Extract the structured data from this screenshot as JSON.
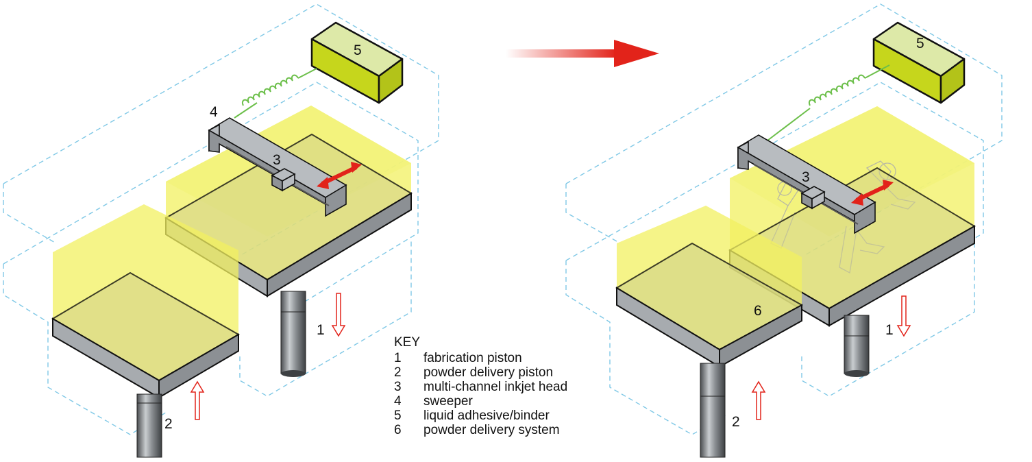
{
  "colors": {
    "powder": "#f1f060",
    "binder_top": "#dde9a8",
    "binder_side": "#c6d61c",
    "slab": "#a7abaf",
    "frame_dash": "#7fc8e6",
    "arrow_red": "#e2231a",
    "wire": "#6cbf4a"
  },
  "left_stage": {
    "label_4": "4",
    "label_3": "3",
    "label_5": "5",
    "label_1": "1",
    "label_2": "2"
  },
  "right_stage": {
    "label_5": "5",
    "label_3": "3",
    "label_6": "6",
    "label_1": "1",
    "label_2": "2"
  },
  "key": {
    "title": "KEY",
    "items": [
      {
        "num": "1",
        "text": "fabrication piston"
      },
      {
        "num": "2",
        "text": "powder delivery piston"
      },
      {
        "num": "3",
        "text": "multi-channel inkjet head"
      },
      {
        "num": "4",
        "text": "sweeper"
      },
      {
        "num": "5",
        "text": "liquid adhesive/binder"
      },
      {
        "num": "6",
        "text": "powder delivery system"
      }
    ]
  },
  "icons": [
    "transition-arrow-icon",
    "down-arrow-icon",
    "up-arrow-icon",
    "double-headed-arrow-icon",
    "coil-wire-icon"
  ]
}
